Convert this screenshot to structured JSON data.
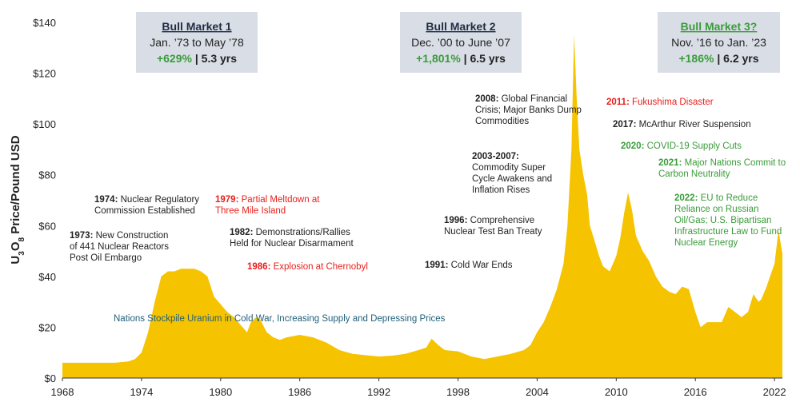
{
  "chart_data": {
    "type": "area",
    "xlim": [
      1968,
      2022.6
    ],
    "ylim": [
      0,
      140
    ],
    "ylabel": "U3O8 Price/Pound USD",
    "ylabel_parts": {
      "pre": "U",
      "sub1": "3",
      "mid": "O",
      "sub2": "8",
      "post": " Price/Pound USD"
    },
    "grid": false,
    "x_ticks": [
      1968,
      1974,
      1980,
      1986,
      1992,
      1998,
      2004,
      2010,
      2016,
      2022
    ],
    "y_ticks": [
      0,
      20,
      40,
      60,
      80,
      100,
      120,
      140
    ],
    "y_tick_labels": [
      "$0",
      "$20",
      "$40",
      "$60",
      "$80",
      "$100",
      "$120",
      "$140"
    ],
    "series": [
      {
        "color": "#F5C300",
        "x": [
          1968,
          1970,
          1972,
          1973,
          1973.5,
          1974,
          1974.5,
          1975,
          1975.5,
          1976,
          1976.5,
          1977,
          1977.5,
          1978,
          1978.5,
          1979,
          1979.5,
          1980,
          1980.5,
          1981,
          1981.5,
          1982,
          1982.3,
          1982.7,
          1983,
          1983.5,
          1984,
          1984.5,
          1985,
          1986,
          1987,
          1988,
          1989,
          1990,
          1991,
          1992,
          1993,
          1994,
          1995,
          1995.6,
          1996,
          1996.5,
          1997,
          1998,
          1999,
          2000,
          2001,
          2002,
          2003,
          2003.5,
          2004,
          2004.5,
          2005,
          2005.5,
          2006,
          2006.3,
          2006.6,
          2006.8,
          2007,
          2007.2,
          2007.5,
          2007.8,
          2008,
          2008.3,
          2008.7,
          2009,
          2009.5,
          2010,
          2010.3,
          2010.6,
          2010.9,
          2011.2,
          2011.5,
          2012,
          2012.5,
          2013,
          2013.5,
          2014,
          2014.5,
          2015,
          2015.5,
          2016,
          2016.4,
          2016.9,
          2017.5,
          2018,
          2018.5,
          2019,
          2019.5,
          2020,
          2020.4,
          2020.8,
          2021,
          2021.4,
          2021.8,
          2022,
          2022.3,
          2022.6
        ],
        "values": [
          6,
          6,
          6,
          6.5,
          7.5,
          10,
          18,
          30,
          40,
          42,
          42,
          43,
          43,
          43,
          42,
          40,
          32,
          29,
          26,
          24,
          21,
          18,
          22,
          24,
          23,
          18,
          16,
          15,
          16,
          17,
          16,
          14,
          11,
          9.5,
          9,
          8.5,
          8.8,
          9.5,
          11,
          12,
          15.5,
          13,
          11,
          10.5,
          8.5,
          7.5,
          8.5,
          9.5,
          11,
          13,
          18,
          22,
          28,
          35,
          45,
          60,
          90,
          135,
          110,
          90,
          80,
          72,
          60,
          55,
          48,
          44,
          42,
          48,
          55,
          65,
          73,
          66,
          56,
          50,
          46,
          40,
          36,
          34,
          33,
          36,
          35,
          26,
          20,
          22,
          22,
          22,
          28,
          26,
          24,
          26,
          33,
          30,
          31,
          36,
          42,
          45,
          58,
          49
        ]
      }
    ],
    "boxes": [
      {
        "title": "Bull Market 1",
        "dates": "Jan. ’73 to May ’78",
        "gain": "+629%",
        "sep": " | ",
        "duration": "5.3 yrs",
        "title_color": "#1F2D44",
        "bg": "#D9DEE6"
      },
      {
        "title": "Bull Market 2",
        "dates": "Dec. ’00 to June ’07",
        "gain": "+1,801%",
        "sep": " | ",
        "duration": "6.5 yrs",
        "title_color": "#1F2D44",
        "bg": "#D9DEE6"
      },
      {
        "title": "Bull Market 3?",
        "dates": "Nov. ’16 to Jan. ’23",
        "gain": "+186%",
        "sep": " | ",
        "duration": "6.2 yrs",
        "title_color": "#3A9C3A",
        "bg": "#D9DEE6"
      }
    ],
    "annotations": [
      {
        "id": "1974",
        "color": "#222222",
        "lines": [
          [
            "1974:",
            " Nuclear Regulatory"
          ],
          [
            "",
            "Commission Established"
          ]
        ]
      },
      {
        "id": "1979",
        "color": "#E8201C",
        "lines": [
          [
            "1979:",
            " Partial Meltdown at"
          ],
          [
            "",
            "Three Mile Island"
          ]
        ]
      },
      {
        "id": "1973",
        "color": "#222222",
        "lines": [
          [
            "1973:",
            " New Construction"
          ],
          [
            "",
            "of 441 Nuclear Reactors"
          ],
          [
            "",
            "Post Oil Embargo"
          ]
        ]
      },
      {
        "id": "1982",
        "color": "#222222",
        "lines": [
          [
            "1982:",
            " Demonstrations/Rallies"
          ],
          [
            "",
            "Held for Nuclear Disarmament"
          ]
        ]
      },
      {
        "id": "1986",
        "color": "#E8201C",
        "lines": [
          [
            "1986:",
            " Explosion at Chernobyl"
          ]
        ]
      },
      {
        "id": "1991",
        "color": "#222222",
        "lines": [
          [
            "1991:",
            " Cold War Ends"
          ]
        ]
      },
      {
        "id": "1996",
        "color": "#222222",
        "lines": [
          [
            "1996:",
            " Comprehensive"
          ],
          [
            "",
            "Nuclear Test Ban Treaty"
          ]
        ]
      },
      {
        "id": "2003",
        "color": "#222222",
        "lines": [
          [
            "2003-2007:",
            ""
          ],
          [
            "",
            "Commodity Super"
          ],
          [
            "",
            "Cycle Awakens and"
          ],
          [
            "",
            "Inflation Rises"
          ]
        ]
      },
      {
        "id": "2008",
        "color": "#222222",
        "lines": [
          [
            "2008:",
            " Global Financial"
          ],
          [
            "",
            "Crisis; Major Banks Dump"
          ],
          [
            "",
            "Commodities"
          ]
        ]
      },
      {
        "id": "2011",
        "color": "#E8201C",
        "lines": [
          [
            "2011:",
            " Fukushima Disaster"
          ]
        ]
      },
      {
        "id": "2017",
        "color": "#222222",
        "lines": [
          [
            "2017:",
            " McArthur River Suspension"
          ]
        ]
      },
      {
        "id": "2020",
        "color": "#3A9C3A",
        "lines": [
          [
            "2020:",
            " COVID-19 Supply Cuts"
          ]
        ]
      },
      {
        "id": "2021",
        "color": "#3A9C3A",
        "lines": [
          [
            "2021:",
            " Major Nations Commit to"
          ],
          [
            "",
            "Carbon Neutrality"
          ]
        ]
      },
      {
        "id": "2022",
        "color": "#3A9C3A",
        "lines": [
          [
            "2022:",
            " EU to Reduce"
          ],
          [
            "",
            "Reliance on Russian"
          ],
          [
            "",
            "Oil/Gas; U.S. Bipartisan"
          ],
          [
            "",
            "Infrastructure Law to Fund"
          ],
          [
            "",
            "Nuclear Energy"
          ]
        ]
      },
      {
        "id": "coldwar",
        "color": "#1F5F7A",
        "lines": [
          [
            "",
            "Nations Stockpile Uranium in Cold War, Increasing Supply and Depressing Prices"
          ]
        ]
      }
    ],
    "colors": {
      "bull_gain": "#3A9C3A",
      "axis": "#333333",
      "annotation_red": "#E8201C",
      "annotation_green": "#3A9C3A",
      "annotation_teal": "#1F5F7A"
    }
  }
}
